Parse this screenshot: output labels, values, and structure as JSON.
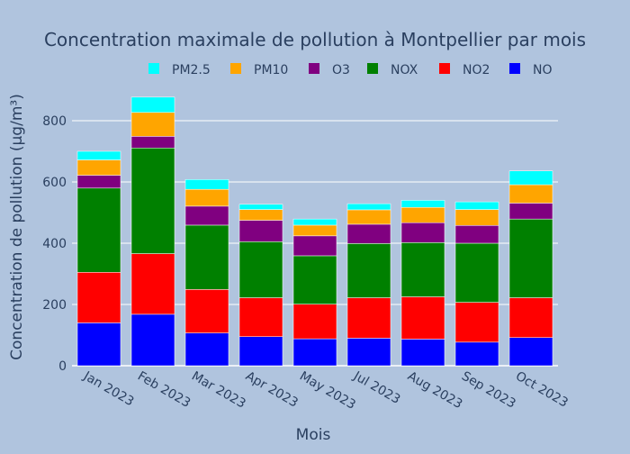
{
  "chart_data": {
    "type": "bar",
    "stacked": true,
    "title": "Concentration maximale de pollution à Montpellier par mois",
    "xlabel": "Mois",
    "ylabel": "Concentration de pollution (µg/m³)",
    "ylim": [
      0,
      900
    ],
    "yticks": [
      0,
      200,
      400,
      600,
      800
    ],
    "grid": true,
    "legend_position": "top",
    "categories": [
      "Jan 2023",
      "Feb 2023",
      "Mar 2023",
      "Apr 2023",
      "May 2023",
      "Jul 2023",
      "Aug 2023",
      "Sep 2023",
      "Oct 2023"
    ],
    "series": [
      {
        "name": "NO",
        "color": "#0000ff",
        "values": [
          140,
          168,
          107,
          95,
          88,
          90,
          87,
          77,
          92
        ]
      },
      {
        "name": "NO2",
        "color": "#ff0000",
        "values": [
          165,
          198,
          142,
          127,
          113,
          132,
          138,
          130,
          130
        ]
      },
      {
        "name": "NOX",
        "color": "#008000",
        "values": [
          275,
          345,
          210,
          183,
          158,
          177,
          177,
          193,
          257
        ]
      },
      {
        "name": "O3",
        "color": "#800080",
        "values": [
          42,
          38,
          62,
          70,
          65,
          63,
          65,
          58,
          52
        ]
      },
      {
        "name": "PM10",
        "color": "#ffa500",
        "values": [
          50,
          78,
          55,
          35,
          35,
          47,
          50,
          52,
          60
        ]
      },
      {
        "name": "PM2.5",
        "color": "#00ffff",
        "values": [
          28,
          50,
          32,
          17,
          20,
          20,
          23,
          25,
          45
        ]
      }
    ],
    "legend_order": [
      "PM2.5",
      "PM10",
      "O3",
      "NOX",
      "NO2",
      "NO"
    ]
  }
}
